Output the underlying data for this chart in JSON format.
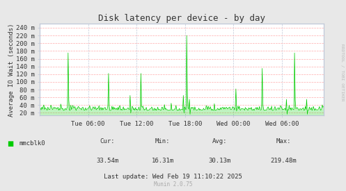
{
  "title": "Disk latency per device - by day",
  "ylabel": "Average IO Wait (seconds)",
  "background_color": "#e8e8e8",
  "plot_bg_color": "#ffffff",
  "line_color": "#00cc00",
  "ytick_labels": [
    "20 m",
    "40 m",
    "60 m",
    "80 m",
    "100 m",
    "120 m",
    "140 m",
    "160 m",
    "180 m",
    "200 m",
    "220 m",
    "240 m"
  ],
  "ytick_vals": [
    0.02,
    0.04,
    0.06,
    0.08,
    0.1,
    0.12,
    0.14,
    0.16,
    0.18,
    0.2,
    0.22,
    0.24
  ],
  "ymin": 0.013,
  "ymax": 0.25,
  "xtick_labels": [
    "Tue 06:00",
    "Tue 12:00",
    "Tue 18:00",
    "Wed 00:00",
    "Wed 06:00"
  ],
  "legend_label": "mmcblk0",
  "legend_color": "#00cc00",
  "cur_label": "Cur:",
  "cur_val": "33.54m",
  "min_label": "Min:",
  "min_val": "16.31m",
  "avg_label": "Avg:",
  "avg_val": "30.13m",
  "max_label": "Max:",
  "max_val": "219.48m",
  "last_update": "Last update: Wed Feb 19 11:10:22 2025",
  "munin_label": "Munin 2.0.75",
  "rrdtool_label": "RRDTOOL / TOBI OETIKER",
  "title_fontsize": 9,
  "tick_fontsize": 6.5,
  "ylabel_fontsize": 6.5,
  "stats_fontsize": 6.5,
  "munin_fontsize": 5.5,
  "rrdtool_fontsize": 4.5
}
